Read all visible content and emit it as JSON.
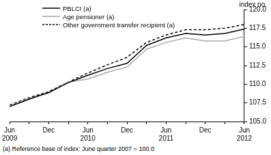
{
  "chart_data": {
    "type": "line",
    "ylabel": "index no.",
    "note": "(a) Reference base of index: June quarter 2007 = 100.0",
    "categories": [
      "Jun 2009",
      null,
      "Dec",
      null,
      "Jun 2010",
      null,
      "Dec",
      null,
      "Jun 2011",
      null,
      "Dec",
      null,
      "Jun 2012"
    ],
    "series": [
      {
        "name": "PBLCI (a)",
        "color": "#000000",
        "line_style": "solid",
        "values": [
          107.0,
          108.0,
          108.9,
          110.2,
          111.2,
          112.1,
          112.8,
          115.2,
          116.2,
          116.8,
          116.6,
          116.8,
          117.4
        ]
      },
      {
        "name": "Age pensioner (a)",
        "color": "#a6a6a6",
        "line_style": "solid",
        "values": [
          107.1,
          108.1,
          108.8,
          110.3,
          110.7,
          111.6,
          112.3,
          114.7,
          115.6,
          116.2,
          115.8,
          115.8,
          116.4
        ]
      },
      {
        "name": "Other government transfer recipient (a)",
        "color": "#000000",
        "line_style": "dashed",
        "values": [
          107.2,
          108.2,
          109.0,
          110.3,
          111.5,
          112.6,
          113.6,
          115.6,
          116.6,
          117.3,
          117.3,
          117.5,
          118.0
        ]
      }
    ],
    "ylim": [
      105,
      120
    ],
    "yticks": [
      {
        "value": 105,
        "label": "105.0"
      },
      {
        "value": 107.5,
        "label": "107.5"
      },
      {
        "value": 110,
        "label": "110.0"
      },
      {
        "value": 112.5,
        "label": "112.5"
      },
      {
        "value": 115,
        "label": "115.0"
      },
      {
        "value": 117.5,
        "label": "117.5"
      },
      {
        "value": 120,
        "label": "120.0"
      }
    ],
    "grid": false,
    "legend": "top-left"
  }
}
